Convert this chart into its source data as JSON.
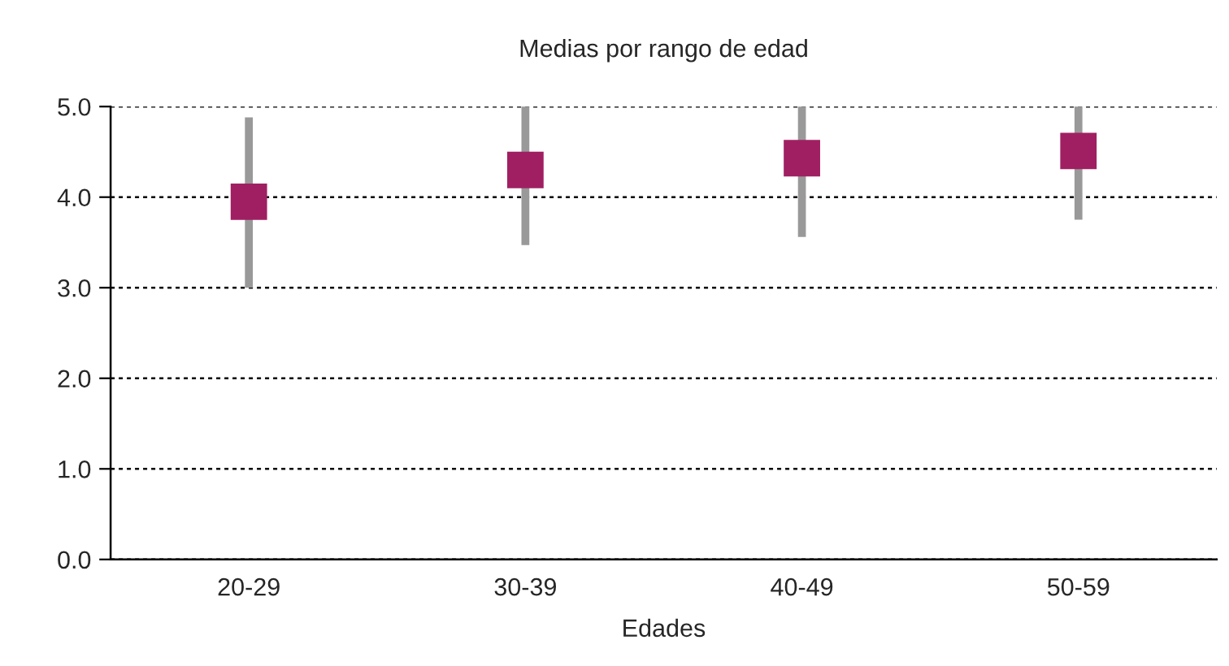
{
  "chart_data": {
    "type": "scatter",
    "title": "Medias por rango de edad",
    "xlabel": "Edades",
    "categories": [
      "20-29",
      "30-39",
      "40-49",
      "50-59"
    ],
    "series": [
      {
        "color": "#a01f62",
        "values": [
          3.95,
          4.3,
          4.43,
          4.51
        ],
        "errors": [
          [
            3.0,
            4.88
          ],
          [
            3.47,
            5.0
          ],
          [
            3.56,
            5.0
          ],
          [
            3.75,
            5.0
          ]
        ]
      }
    ],
    "ylim": [
      0,
      5
    ],
    "yticks": [
      {
        "value": 0,
        "label": "0.0"
      },
      {
        "value": 1,
        "label": "1.0"
      },
      {
        "value": 2,
        "label": "2.0"
      },
      {
        "value": 3,
        "label": "3.0"
      },
      {
        "value": 4,
        "label": "4.0"
      },
      {
        "value": 5,
        "label": "5.0"
      }
    ],
    "grid": "y",
    "marker": "square"
  }
}
